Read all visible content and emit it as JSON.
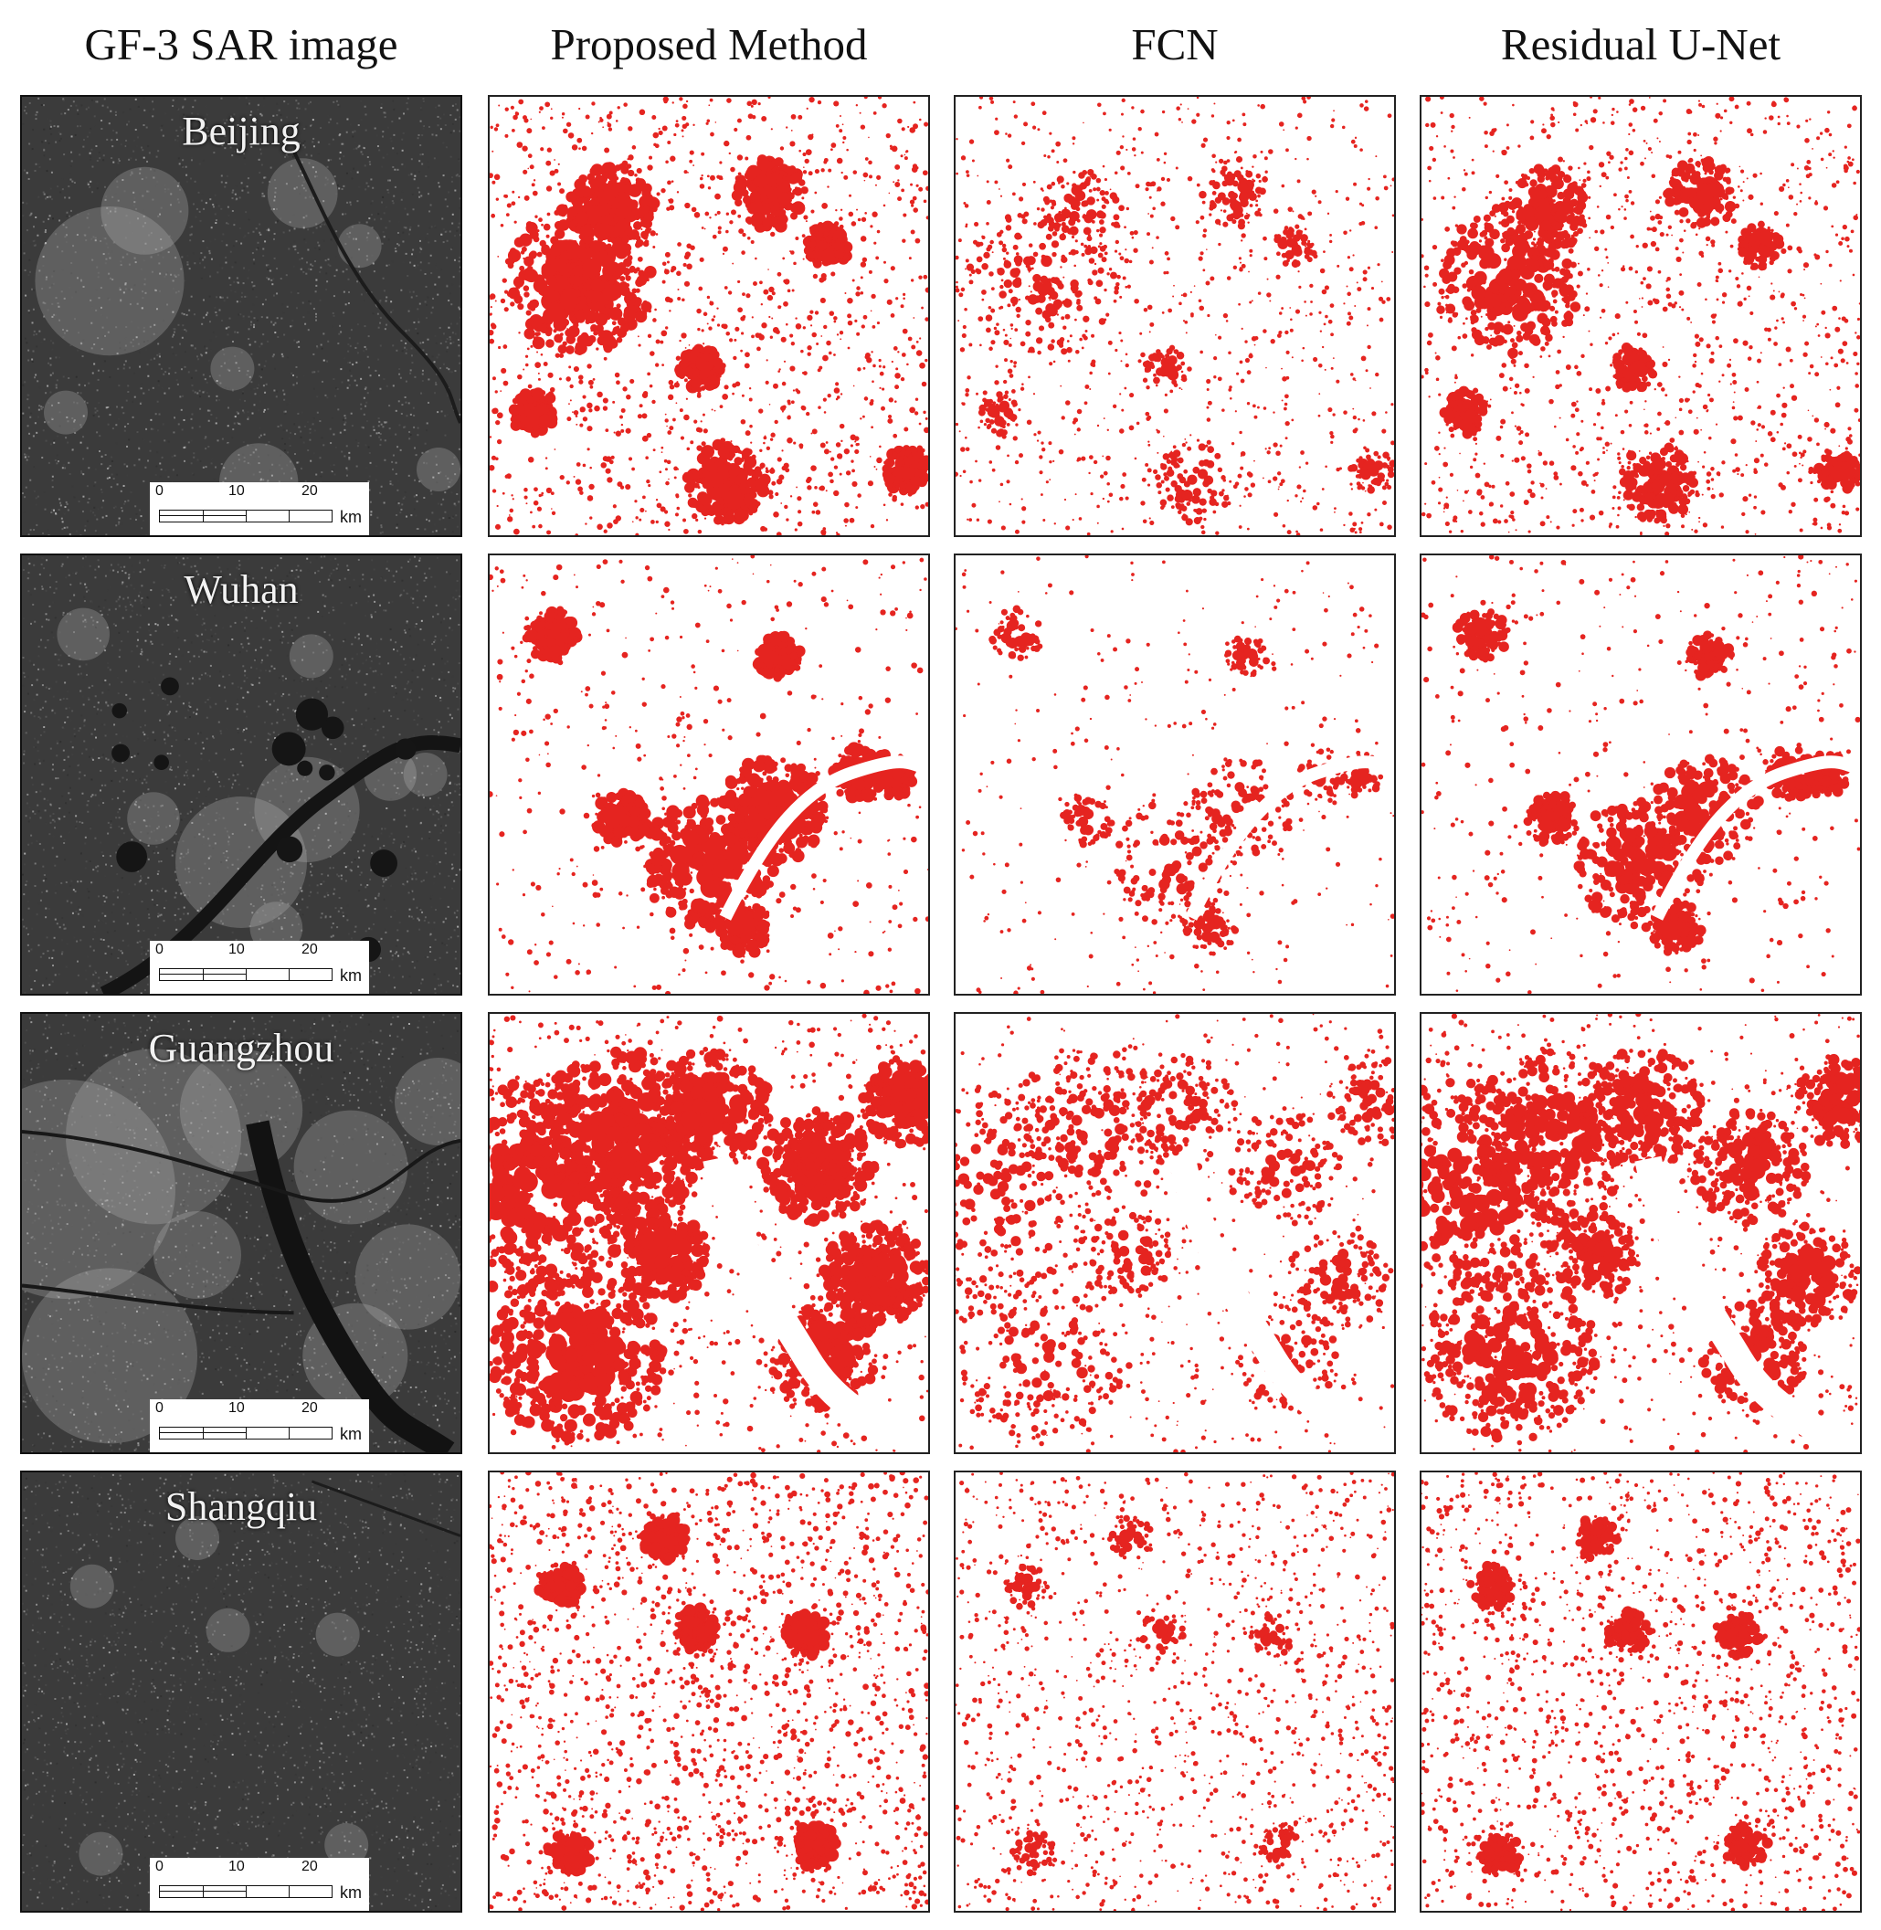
{
  "figure": {
    "column_headers": [
      "GF-3 SAR image",
      "Proposed Method",
      "FCN",
      "Residual U-Net"
    ],
    "rows": [
      {
        "city": "Beijing",
        "pattern": "beijing"
      },
      {
        "city": "Wuhan",
        "pattern": "wuhan"
      },
      {
        "city": "Guangzhou",
        "pattern": "guangzhou"
      },
      {
        "city": "Shangqiu",
        "pattern": "shangqiu"
      }
    ],
    "scalebar": {
      "ticks": [
        "0",
        "10",
        "20"
      ],
      "unit": "km"
    },
    "colors": {
      "built_up": "#e52420",
      "background": "#ffffff",
      "sar_base": "#3a3a3a"
    }
  }
}
